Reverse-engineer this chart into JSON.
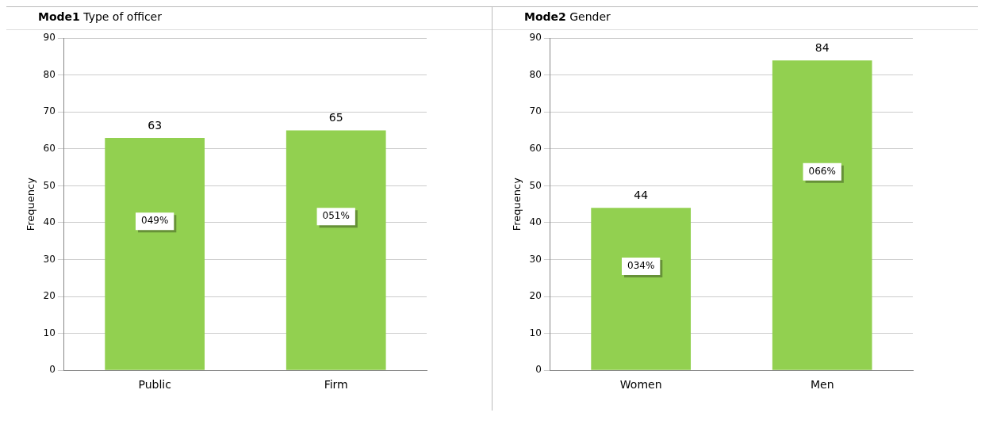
{
  "chart_data": [
    {
      "type": "bar",
      "title": "Mode1",
      "subtitle": "Type of officer",
      "ylabel": "Frequency",
      "categories": [
        "Public",
        "Firm"
      ],
      "values": [
        63,
        65
      ],
      "color": "#92d050",
      "ylim": [
        0,
        90
      ],
      "yticks": [
        0,
        10,
        20,
        30,
        40,
        50,
        60,
        70,
        80,
        90
      ],
      "grid": "y",
      "legend": false,
      "data_labels": true,
      "annotations": [
        "049%",
        "051%"
      ]
    },
    {
      "type": "bar",
      "title": "Mode2",
      "subtitle": "Gender",
      "ylabel": "Frequency",
      "categories": [
        "Women",
        "Men"
      ],
      "values": [
        44,
        84
      ],
      "color": "#92d050",
      "ylim": [
        0,
        90
      ],
      "yticks": [
        0,
        10,
        20,
        30,
        40,
        50,
        60,
        70,
        80,
        90
      ],
      "grid": "y",
      "legend": false,
      "data_labels": true,
      "annotations": [
        "034%",
        "066%"
      ]
    }
  ]
}
